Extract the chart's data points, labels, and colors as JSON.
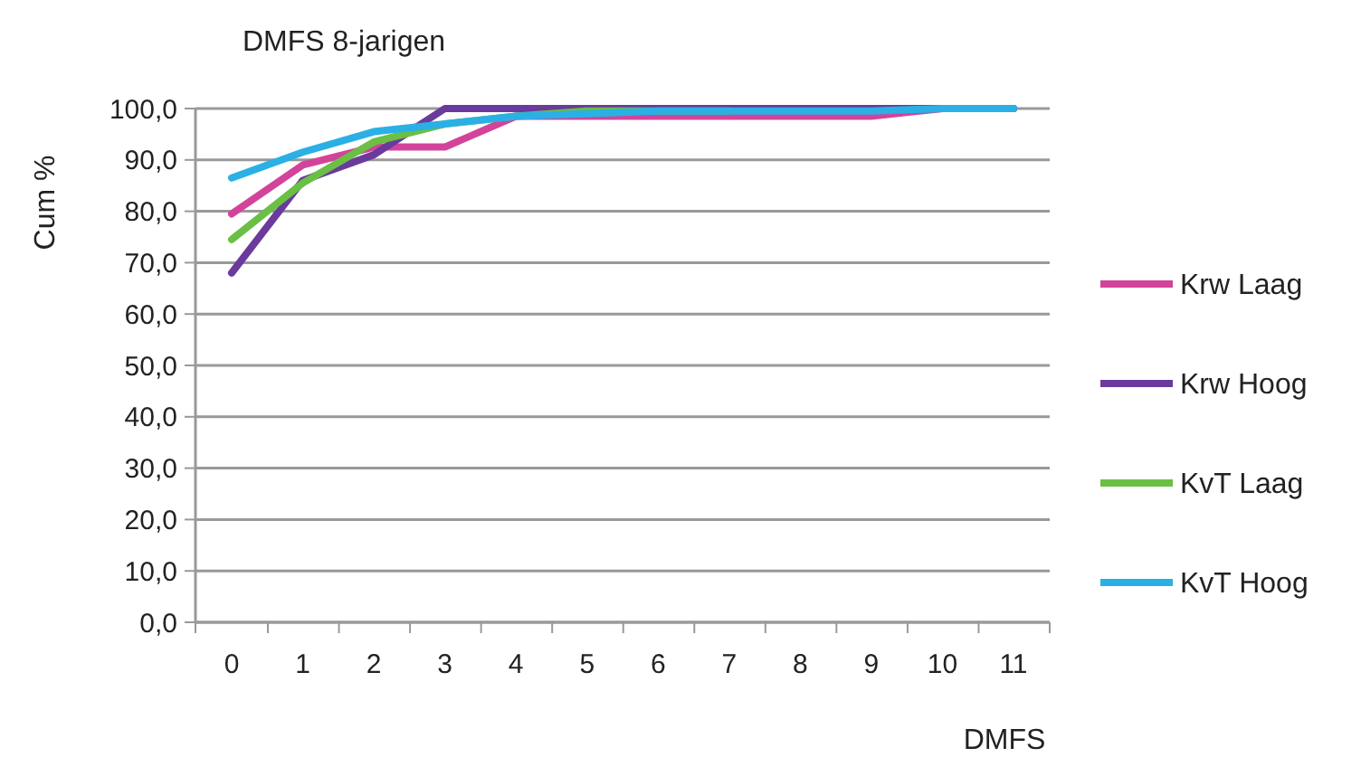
{
  "chart_data": {
    "type": "line",
    "title": "DMFS 8-jarigen",
    "xlabel": "DMFS",
    "ylabel": "Cum %",
    "categories": [
      "0",
      "1",
      "2",
      "3",
      "4",
      "5",
      "6",
      "7",
      "8",
      "9",
      "10",
      "11"
    ],
    "series": [
      {
        "name": "Krw Laag",
        "color": "#d2449a",
        "values": [
          79.5,
          89,
          92.5,
          92.5,
          98.5,
          98.5,
          98.5,
          98.5,
          98.5,
          98.5,
          100,
          100
        ]
      },
      {
        "name": "Krw Hoog",
        "color": "#6a3a9c",
        "values": [
          68,
          86,
          91,
          100,
          100,
          100,
          100,
          100,
          100,
          100,
          100,
          100
        ]
      },
      {
        "name": "KvT Laag",
        "color": "#6abf45",
        "values": [
          74.5,
          85.5,
          93.5,
          97,
          98.5,
          99.5,
          99.5,
          99.5,
          null,
          null,
          null,
          null
        ]
      },
      {
        "name": "KvT Hoog",
        "color": "#2ab0e4",
        "values": [
          86.5,
          91.5,
          95.5,
          97,
          98.5,
          99,
          99.5,
          99.5,
          99.5,
          99.5,
          100,
          100
        ]
      }
    ],
    "ylim": [
      0,
      100
    ],
    "yticks": [
      {
        "value": 0,
        "label": "0,0"
      },
      {
        "value": 10,
        "label": "10,0"
      },
      {
        "value": 20,
        "label": "20,0"
      },
      {
        "value": 30,
        "label": "30,0"
      },
      {
        "value": 40,
        "label": "40,0"
      },
      {
        "value": 50,
        "label": "50,0"
      },
      {
        "value": 60,
        "label": "60,0"
      },
      {
        "value": 70,
        "label": "70,0"
      },
      {
        "value": 80,
        "label": "80,0"
      },
      {
        "value": 90,
        "label": "90,0"
      },
      {
        "value": 100,
        "label": "100,0"
      }
    ],
    "grid": "y",
    "legend": "right",
    "marker": "none",
    "line_style": "solid"
  }
}
